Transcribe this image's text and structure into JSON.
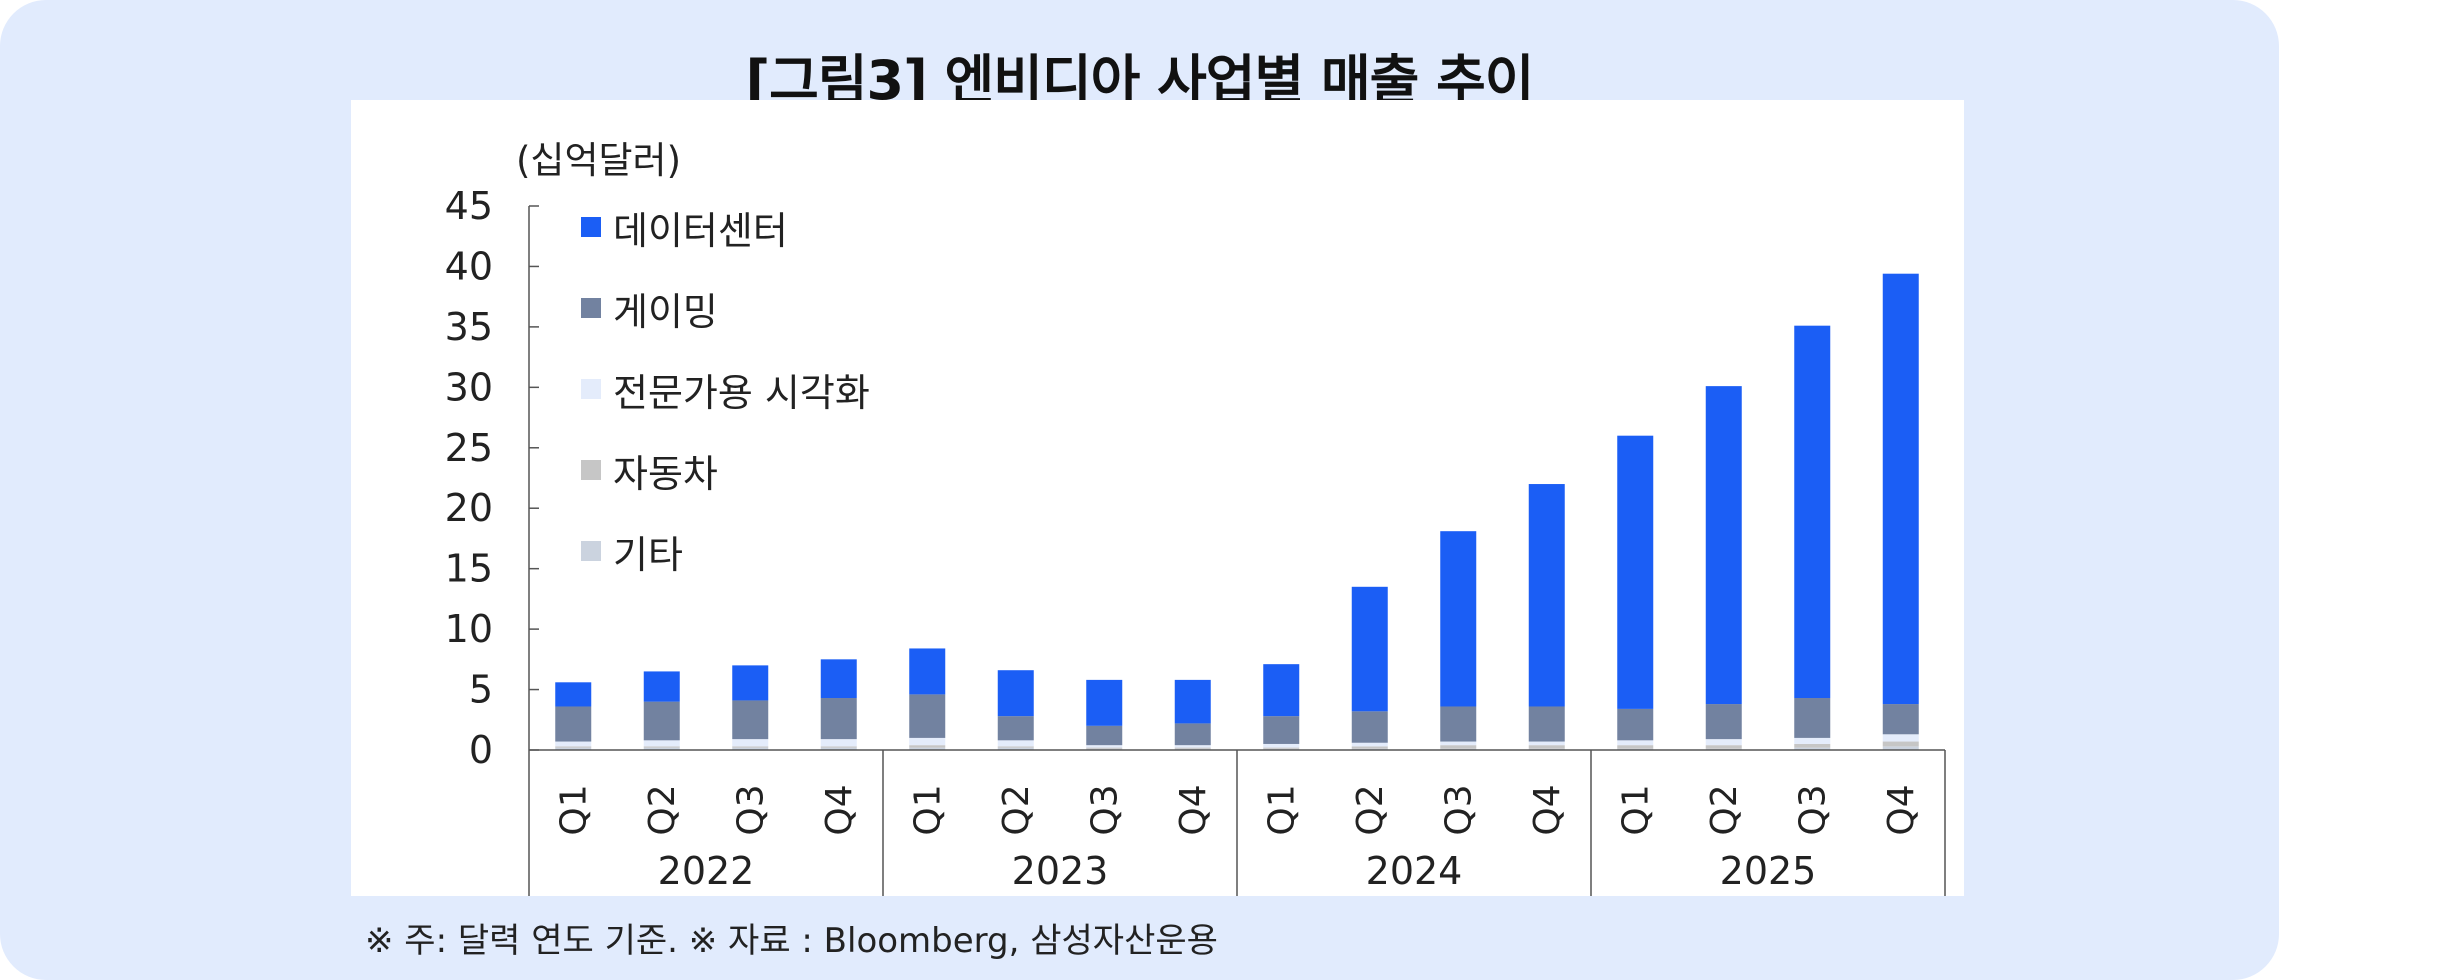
{
  "title": "[그림3] 엔비디아 사업별 매출 추이",
  "note": "※ 주: 달력 연도 기준. ※ 자료 : Bloomberg, 삼성자산운용",
  "chart_data": {
    "type": "bar",
    "stacked": true,
    "unit_label": "(십억달러)",
    "ylim": [
      0,
      45
    ],
    "yticks": [
      0,
      5,
      10,
      15,
      20,
      25,
      30,
      35,
      40,
      45
    ],
    "categories": [
      "Q1",
      "Q2",
      "Q3",
      "Q4",
      "Q1",
      "Q2",
      "Q3",
      "Q4",
      "Q1",
      "Q2",
      "Q3",
      "Q4",
      "Q1",
      "Q2",
      "Q3",
      "Q4"
    ],
    "groups": [
      {
        "label": "2022",
        "count": 4
      },
      {
        "label": "2023",
        "count": 4
      },
      {
        "label": "2024",
        "count": 4
      },
      {
        "label": "2025",
        "count": 4
      }
    ],
    "legend_position": "top-left",
    "series": [
      {
        "name": "기타",
        "color": "#cbd3df",
        "values": [
          0.2,
          0.2,
          0.2,
          0.2,
          0.2,
          0.2,
          0.1,
          0.1,
          0.1,
          0.1,
          0.1,
          0.1,
          0.1,
          0.1,
          0.2,
          0.3
        ]
      },
      {
        "name": "자동차",
        "color": "#c6c6c6",
        "values": [
          0.1,
          0.1,
          0.1,
          0.1,
          0.2,
          0.1,
          0.1,
          0.1,
          0.1,
          0.2,
          0.3,
          0.3,
          0.3,
          0.3,
          0.3,
          0.4
        ]
      },
      {
        "name": "전문가용 시각화",
        "color": "#e4ecfb",
        "values": [
          0.4,
          0.5,
          0.6,
          0.6,
          0.6,
          0.5,
          0.2,
          0.2,
          0.3,
          0.3,
          0.3,
          0.3,
          0.4,
          0.5,
          0.5,
          0.6
        ]
      },
      {
        "name": "게이밍",
        "color": "#7282a0",
        "values": [
          2.9,
          3.2,
          3.2,
          3.4,
          3.6,
          2.0,
          1.6,
          1.8,
          2.3,
          2.6,
          2.9,
          2.9,
          2.6,
          2.9,
          3.3,
          2.5
        ]
      },
      {
        "name": "데이터센터",
        "color": "#1b5ef5",
        "values": [
          2.0,
          2.5,
          2.9,
          3.2,
          3.8,
          3.8,
          3.8,
          3.6,
          4.3,
          10.3,
          14.5,
          18.4,
          22.6,
          26.3,
          30.8,
          35.6
        ]
      }
    ],
    "legend_order": [
      "데이터센터",
      "게이밍",
      "전문가용 시각화",
      "자동차",
      "기타"
    ]
  }
}
